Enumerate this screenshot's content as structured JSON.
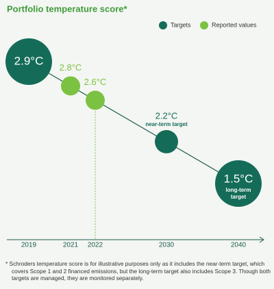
{
  "chart_data": {
    "type": "line",
    "title": "Portfolio temperature score*",
    "categories": [
      "2019",
      "2021",
      "2022",
      "2030",
      "2040"
    ],
    "series": [
      {
        "name": "Targets",
        "color": "#146c58",
        "values": [
          2.9,
          null,
          null,
          2.2,
          1.5
        ],
        "value_labels": [
          "2.9°C",
          null,
          null,
          "2.2°C",
          "1.5°C"
        ]
      },
      {
        "name": "Reported values",
        "color": "#7cc242",
        "values": [
          null,
          2.8,
          2.6,
          null,
          null
        ],
        "value_labels": [
          null,
          "2.8°C",
          "2.6°C",
          null,
          null
        ]
      }
    ],
    "annotations": [
      "near-term target",
      "long-term target"
    ],
    "footnote": "Schroders temperature score is for illustrative purposes only as it includes the near-term target, which covers Scope 1 and 2 financed emissions, but the long-term target also includes Scope 3. Though both targets are managed, they are monitored separately."
  }
}
